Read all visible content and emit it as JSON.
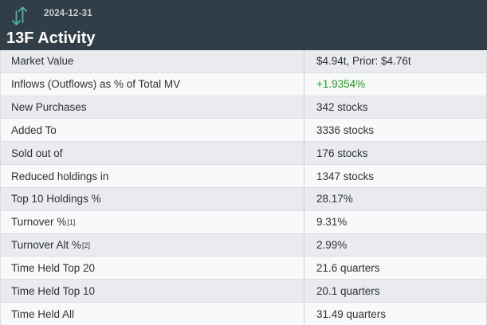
{
  "header": {
    "date": "2024-12-31",
    "title": "13F Activity",
    "icon": "swap-vertical-icon"
  },
  "colors": {
    "header_bg": "#313d47",
    "accent_teal": "#4fb3a5",
    "date_text": "#c7ced4",
    "row_alt_bg": "#e9ebee",
    "row_bg": "#f8f9fa",
    "positive_green": "#1e9c1e"
  },
  "table": {
    "rows": [
      {
        "label": "Market Value",
        "value": "$4.94t, Prior: $4.76t"
      },
      {
        "label": "Inflows (Outflows) as % of Total MV",
        "value": "+1.9354%",
        "positive": true
      },
      {
        "label": "New Purchases",
        "value": "342 stocks"
      },
      {
        "label": "Added To",
        "value": "3336 stocks"
      },
      {
        "label": "Sold out of",
        "value": "176 stocks"
      },
      {
        "label": "Reduced holdings in",
        "value": "1347 stocks"
      },
      {
        "label": "Top 10 Holdings %",
        "value": "28.17%"
      },
      {
        "label": "Turnover %",
        "sup": "[1]",
        "value": "9.31%"
      },
      {
        "label": "Turnover Alt %",
        "sup": "[2]",
        "value": "2.99%"
      },
      {
        "label": "Time Held Top 20",
        "value": "21.6 quarters"
      },
      {
        "label": "Time Held Top 10",
        "value": "20.1 quarters"
      },
      {
        "label": "Time Held All",
        "value": "31.49 quarters"
      }
    ]
  }
}
